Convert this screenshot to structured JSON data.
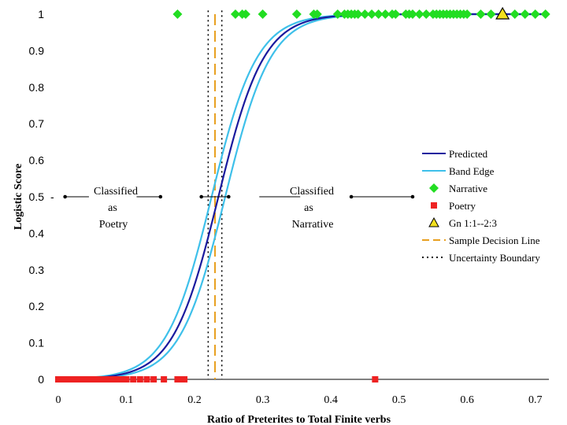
{
  "chart_data": {
    "type": "scatter",
    "title": "",
    "xlabel": "Ratio of Preterites to Total Finite verbs",
    "ylabel": "Logistic Score",
    "xlim": [
      0,
      0.72
    ],
    "ylim": [
      0,
      1
    ],
    "x_ticks": [
      "0",
      "0.1",
      "0.2",
      "0.3",
      "0.4",
      "0.5",
      "0.6",
      "0.7"
    ],
    "y_ticks": [
      "0",
      "0.1",
      "0.2",
      "0.3",
      "0.4",
      "0.5",
      "0.6",
      "0.7",
      "0.8",
      "0.9",
      "1"
    ],
    "y_dash_tick": "-",
    "grid": false,
    "legend_position": "right",
    "curve": {
      "midpoint": 0.235,
      "steepness": 30,
      "band_shift": 0.01
    },
    "series": [
      {
        "name": "Predicted",
        "kind": "line",
        "color": "#1a1a9e"
      },
      {
        "name": "Band Edge",
        "kind": "line",
        "color": "#3ec0ea"
      },
      {
        "name": "Narrative",
        "kind": "points",
        "marker": "diamond",
        "color": "#22dd22",
        "y": 1,
        "x": [
          0.175,
          0.26,
          0.27,
          0.275,
          0.3,
          0.35,
          0.375,
          0.38,
          0.41,
          0.42,
          0.425,
          0.43,
          0.435,
          0.44,
          0.45,
          0.46,
          0.47,
          0.48,
          0.49,
          0.495,
          0.51,
          0.515,
          0.52,
          0.53,
          0.54,
          0.55,
          0.555,
          0.56,
          0.565,
          0.57,
          0.575,
          0.58,
          0.585,
          0.59,
          0.595,
          0.6,
          0.62,
          0.635,
          0.67,
          0.685,
          0.7,
          0.715
        ]
      },
      {
        "name": "Poetry",
        "kind": "points",
        "marker": "square",
        "color": "#ee2222",
        "y": 0,
        "x": [
          0.0,
          0.005,
          0.01,
          0.015,
          0.02,
          0.025,
          0.03,
          0.035,
          0.04,
          0.045,
          0.05,
          0.055,
          0.06,
          0.065,
          0.07,
          0.075,
          0.08,
          0.085,
          0.09,
          0.095,
          0.1,
          0.11,
          0.12,
          0.13,
          0.14,
          0.155,
          0.175,
          0.18,
          0.185,
          0.465
        ]
      },
      {
        "name": "Gn 1:1--2:3",
        "kind": "points",
        "marker": "triangle",
        "color": "#f2e01e",
        "x": [
          0.652
        ],
        "y": 1
      },
      {
        "name": "Sample Decision Line",
        "kind": "vline",
        "x": 0.23,
        "color": "#e8a020"
      },
      {
        "name": "Uncertainty Boundary",
        "kind": "vline",
        "x": [
          0.22,
          0.24
        ],
        "color": "#000000"
      }
    ],
    "annotations": [
      {
        "lines": [
          "Classified",
          "as",
          "Poetry"
        ],
        "region": "left"
      },
      {
        "lines": [
          "Classified",
          "as",
          "Narrative"
        ],
        "region": "right"
      }
    ],
    "arrow_y": 0.5,
    "arrow_dots_x": [
      0.01,
      0.15,
      0.21,
      0.25,
      0.43,
      0.52
    ]
  }
}
